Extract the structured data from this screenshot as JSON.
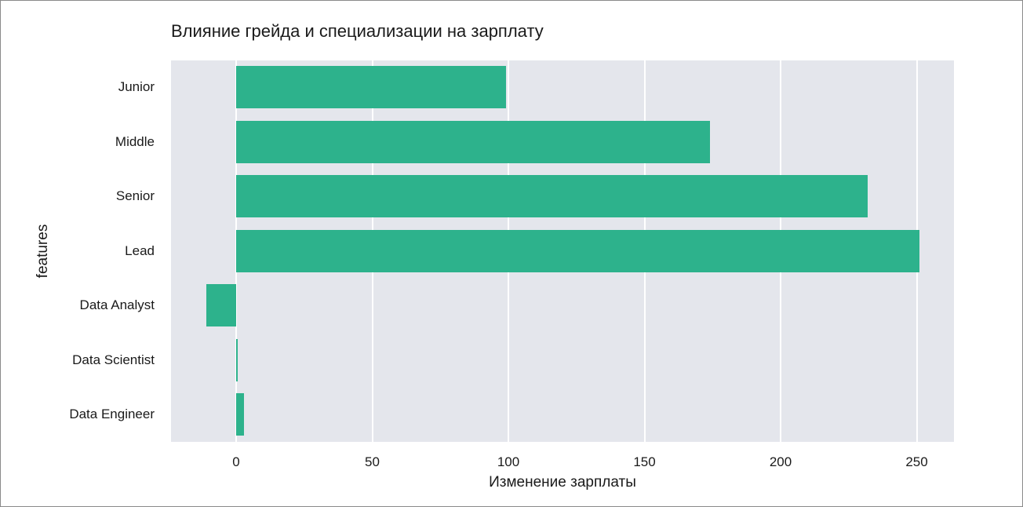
{
  "chart_data": {
    "type": "bar",
    "orientation": "horizontal",
    "title": "Влияние грейда и специализации на зарплату",
    "xlabel": "Изменение зарплаты",
    "ylabel": "features",
    "categories": [
      "Junior",
      "Middle",
      "Senior",
      "Lead",
      "Data Analyst",
      "Data Scientist",
      "Data Engineer"
    ],
    "values": [
      99,
      174,
      232,
      251,
      -11,
      0.5,
      3
    ],
    "xticks": [
      0,
      50,
      100,
      150,
      200,
      250
    ],
    "xlim": [
      -24,
      264
    ],
    "grid": true,
    "legend": null,
    "bar_color": "#2db28c",
    "plot_background": "#e4e6ec"
  },
  "labels": {
    "title": "Влияние грейда и специализации на зарплату",
    "xlabel": "Изменение зарплаты",
    "ylabel": "features",
    "xticks": [
      "0",
      "50",
      "100",
      "150",
      "200",
      "250"
    ],
    "categories": [
      "Junior",
      "Middle",
      "Senior",
      "Lead",
      "Data Analyst",
      "Data Scientist",
      "Data Engineer"
    ]
  }
}
